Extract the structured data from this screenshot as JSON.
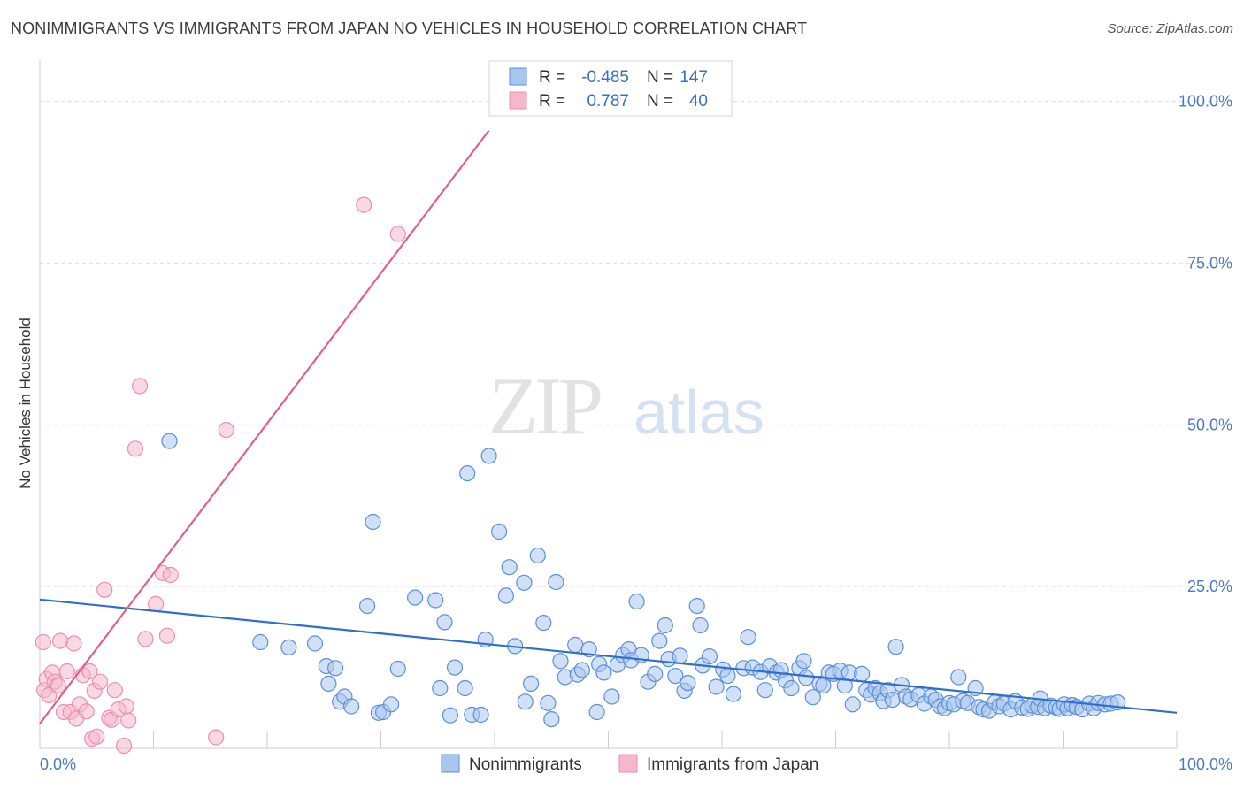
{
  "title": "NONIMMIGRANTS VS IMMIGRANTS FROM JAPAN NO VEHICLES IN HOUSEHOLD CORRELATION CHART",
  "source": "Source: ZipAtlas.com",
  "watermark": {
    "zip": "ZIP",
    "atlas": "atlas"
  },
  "colors": {
    "blue_fill": "#a9c7ee",
    "blue_stroke": "#5b8fd6",
    "blue_line": "#2f6fcc",
    "pink_fill": "#f5b8cb",
    "pink_stroke": "#e890ad",
    "pink_line": "#e0608c",
    "axis_text": "#4a7bc0",
    "grid": "#dddddd"
  },
  "legend": {
    "rows": [
      {
        "r_label": "R =",
        "r_value": "-0.485",
        "n_label": "N =",
        "n_value": "147"
      },
      {
        "r_label": "R =",
        "r_value": "0.787",
        "n_label": "N =",
        "n_value": "40"
      }
    ]
  },
  "chart_data": {
    "type": "scatter",
    "title": "NONIMMIGRANTS VS IMMIGRANTS FROM JAPAN NO VEHICLES IN HOUSEHOLD CORRELATION CHART",
    "xlabel": "",
    "ylabel": "No Vehicles in Household",
    "xlim": [
      0,
      100
    ],
    "ylim": [
      0,
      105
    ],
    "x_tick_labels": [
      "0.0%",
      "100.0%"
    ],
    "y_ticks": [
      25,
      50,
      75,
      100
    ],
    "y_tick_labels": [
      "25.0%",
      "50.0%",
      "75.0%",
      "100.0%"
    ],
    "grid": "horizontal dashed",
    "legend_position": "top-center",
    "series": [
      {
        "name": "Nonimmigrants",
        "color": "#5b8fd6",
        "r": -0.485,
        "n": 147,
        "trend": {
          "x": [
            0,
            100
          ],
          "y": [
            23.0,
            5.5
          ]
        },
        "points": [
          [
            11.4,
            47.5
          ],
          [
            19.4,
            16.4
          ],
          [
            21.9,
            15.6
          ],
          [
            24.2,
            16.2
          ],
          [
            25.2,
            12.7
          ],
          [
            25.4,
            10.0
          ],
          [
            26.0,
            12.4
          ],
          [
            26.4,
            7.2
          ],
          [
            26.8,
            8.0
          ],
          [
            27.4,
            6.5
          ],
          [
            28.8,
            22.0
          ],
          [
            29.3,
            35.0
          ],
          [
            29.8,
            5.5
          ],
          [
            30.2,
            5.6
          ],
          [
            30.9,
            6.8
          ],
          [
            31.5,
            12.3
          ],
          [
            33.0,
            23.3
          ],
          [
            34.8,
            22.9
          ],
          [
            35.2,
            9.3
          ],
          [
            35.6,
            19.5
          ],
          [
            36.1,
            5.1
          ],
          [
            36.5,
            12.5
          ],
          [
            37.4,
            9.3
          ],
          [
            37.6,
            42.5
          ],
          [
            38.0,
            5.2
          ],
          [
            38.8,
            5.2
          ],
          [
            39.2,
            16.8
          ],
          [
            39.5,
            45.2
          ],
          [
            40.4,
            33.5
          ],
          [
            41.0,
            23.6
          ],
          [
            41.3,
            28.0
          ],
          [
            41.8,
            15.8
          ],
          [
            42.6,
            25.6
          ],
          [
            42.7,
            7.2
          ],
          [
            43.2,
            10.0
          ],
          [
            43.8,
            29.8
          ],
          [
            44.3,
            19.4
          ],
          [
            44.7,
            7.0
          ],
          [
            45.0,
            4.5
          ],
          [
            45.4,
            25.7
          ],
          [
            45.8,
            13.5
          ],
          [
            46.2,
            11.0
          ],
          [
            47.1,
            16.0
          ],
          [
            47.3,
            11.4
          ],
          [
            47.7,
            12.1
          ],
          [
            48.3,
            15.3
          ],
          [
            49.0,
            5.6
          ],
          [
            49.2,
            13.0
          ],
          [
            49.6,
            11.7
          ],
          [
            50.3,
            8.0
          ],
          [
            50.8,
            12.9
          ],
          [
            51.3,
            14.4
          ],
          [
            51.8,
            15.3
          ],
          [
            52.0,
            13.6
          ],
          [
            52.5,
            22.7
          ],
          [
            52.9,
            14.4
          ],
          [
            53.5,
            10.3
          ],
          [
            54.1,
            11.5
          ],
          [
            54.5,
            16.6
          ],
          [
            55.0,
            19.0
          ],
          [
            55.3,
            13.8
          ],
          [
            55.9,
            11.2
          ],
          [
            56.3,
            14.3
          ],
          [
            56.7,
            8.9
          ],
          [
            57.0,
            10.1
          ],
          [
            57.8,
            22.0
          ],
          [
            58.1,
            19.0
          ],
          [
            58.3,
            12.8
          ],
          [
            58.9,
            14.2
          ],
          [
            59.5,
            9.5
          ],
          [
            60.1,
            12.2
          ],
          [
            60.5,
            11.2
          ],
          [
            61.0,
            8.4
          ],
          [
            61.9,
            12.4
          ],
          [
            62.3,
            17.2
          ],
          [
            62.7,
            12.5
          ],
          [
            63.4,
            11.8
          ],
          [
            63.8,
            9.0
          ],
          [
            64.2,
            12.7
          ],
          [
            64.8,
            11.7
          ],
          [
            65.2,
            12.1
          ],
          [
            65.6,
            10.5
          ],
          [
            66.1,
            9.3
          ],
          [
            66.8,
            12.4
          ],
          [
            67.2,
            13.5
          ],
          [
            67.4,
            10.9
          ],
          [
            68.0,
            7.9
          ],
          [
            68.6,
            10.0
          ],
          [
            68.9,
            9.7
          ],
          [
            69.4,
            11.7
          ],
          [
            69.8,
            11.5
          ],
          [
            70.4,
            12.0
          ],
          [
            70.8,
            9.7
          ],
          [
            71.2,
            11.7
          ],
          [
            71.5,
            6.8
          ],
          [
            72.3,
            11.5
          ],
          [
            72.7,
            9.0
          ],
          [
            73.1,
            8.3
          ],
          [
            73.5,
            9.3
          ],
          [
            73.9,
            8.5
          ],
          [
            74.2,
            7.3
          ],
          [
            74.6,
            9.0
          ],
          [
            75.0,
            7.5
          ],
          [
            75.3,
            15.7
          ],
          [
            75.8,
            9.8
          ],
          [
            76.2,
            8.0
          ],
          [
            76.6,
            7.6
          ],
          [
            77.3,
            8.2
          ],
          [
            77.8,
            6.9
          ],
          [
            78.4,
            8.0
          ],
          [
            78.8,
            7.5
          ],
          [
            79.2,
            6.5
          ],
          [
            79.6,
            6.2
          ],
          [
            80.0,
            7.0
          ],
          [
            80.4,
            6.8
          ],
          [
            80.8,
            11.0
          ],
          [
            81.2,
            7.3
          ],
          [
            81.6,
            7.0
          ],
          [
            82.3,
            9.3
          ],
          [
            82.6,
            6.4
          ],
          [
            83.0,
            6.0
          ],
          [
            83.5,
            5.8
          ],
          [
            84.0,
            7.1
          ],
          [
            84.4,
            6.5
          ],
          [
            84.8,
            6.9
          ],
          [
            85.4,
            6.0
          ],
          [
            85.8,
            7.3
          ],
          [
            86.4,
            6.3
          ],
          [
            86.9,
            6.1
          ],
          [
            87.3,
            6.6
          ],
          [
            87.8,
            6.4
          ],
          [
            88.0,
            7.7
          ],
          [
            88.4,
            6.2
          ],
          [
            88.9,
            6.6
          ],
          [
            89.4,
            6.3
          ],
          [
            89.7,
            6.1
          ],
          [
            90.1,
            6.8
          ],
          [
            90.4,
            6.2
          ],
          [
            90.8,
            6.7
          ],
          [
            91.2,
            6.4
          ],
          [
            91.7,
            6.0
          ],
          [
            92.3,
            6.9
          ],
          [
            92.7,
            6.2
          ],
          [
            93.1,
            7.0
          ],
          [
            93.7,
            6.8
          ],
          [
            94.2,
            6.9
          ],
          [
            94.8,
            7.1
          ]
        ]
      },
      {
        "name": "Immigrants from Japan",
        "color": "#e890ad",
        "r": 0.787,
        "n": 40,
        "trend": {
          "x": [
            0,
            39.5
          ],
          "y": [
            3.8,
            95.5
          ]
        },
        "points": [
          [
            0.3,
            16.4
          ],
          [
            0.4,
            9.0
          ],
          [
            0.6,
            10.7
          ],
          [
            0.8,
            8.2
          ],
          [
            1.1,
            11.7
          ],
          [
            1.3,
            10.3
          ],
          [
            1.6,
            9.7
          ],
          [
            1.8,
            16.6
          ],
          [
            2.1,
            5.6
          ],
          [
            2.4,
            11.9
          ],
          [
            2.7,
            5.6
          ],
          [
            3.0,
            16.2
          ],
          [
            3.2,
            4.6
          ],
          [
            3.5,
            6.8
          ],
          [
            3.8,
            11.3
          ],
          [
            4.1,
            5.7
          ],
          [
            4.4,
            11.9
          ],
          [
            4.6,
            1.5
          ],
          [
            4.8,
            8.9
          ],
          [
            5.0,
            1.8
          ],
          [
            5.3,
            10.3
          ],
          [
            5.7,
            24.5
          ],
          [
            6.1,
            4.7
          ],
          [
            6.3,
            4.4
          ],
          [
            6.6,
            9.0
          ],
          [
            6.9,
            6.0
          ],
          [
            7.4,
            0.4
          ],
          [
            7.6,
            6.5
          ],
          [
            7.8,
            4.3
          ],
          [
            8.4,
            46.3
          ],
          [
            8.8,
            56.0
          ],
          [
            9.3,
            16.9
          ],
          [
            10.2,
            22.3
          ],
          [
            10.8,
            27.1
          ],
          [
            11.2,
            17.4
          ],
          [
            11.5,
            26.8
          ],
          [
            15.5,
            1.7
          ],
          [
            16.4,
            49.2
          ],
          [
            28.5,
            84.0
          ],
          [
            31.5,
            79.5
          ]
        ]
      }
    ]
  }
}
